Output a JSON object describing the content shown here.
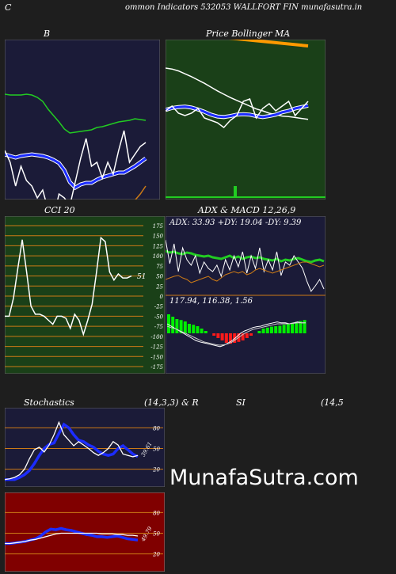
{
  "header": {
    "left_letter": "C",
    "title": "ommon  Indicators 532053 WALLFORT FIN  munafasutra.in"
  },
  "watermark": "MunafaSutra.com",
  "colors": {
    "page_bg": "#1e1e1e",
    "navy_panel": "#1b1b38",
    "green_panel": "#1a4018",
    "maroon_panel": "#800000",
    "grid_orange": "#cc7a16",
    "blue_line": "#1c2cff",
    "green_line": "#22cc22",
    "white_line": "#ffffff"
  },
  "chart_data": [
    {
      "type": "line",
      "title": "B",
      "series": [
        {
          "name": "",
          "color": "#22cc22",
          "values": [
            69,
            70,
            70,
            70,
            69,
            70,
            73,
            78,
            88,
            96,
            104,
            113,
            118,
            117,
            116,
            115,
            114,
            111,
            110,
            108,
            106,
            104,
            103,
            102,
            100,
            101,
            102
          ]
        },
        {
          "name": "",
          "color": "#1c2cff",
          "values": [
            145,
            147,
            149,
            147,
            146,
            145,
            146,
            147,
            149,
            152,
            156,
            165,
            180,
            187,
            183,
            181,
            181,
            177,
            174,
            172,
            170,
            168,
            168,
            164,
            160,
            155,
            150
          ]
        },
        {
          "name": "",
          "color": "#ffffff",
          "values": [
            140,
            155,
            185,
            160,
            178,
            185,
            200,
            190,
            215,
            225,
            195,
            200,
            210,
            180,
            150,
            125,
            160,
            155,
            175,
            155,
            170,
            140,
            115,
            155,
            145,
            135,
            130
          ]
        },
        {
          "name": "",
          "color": "#cc7a16",
          "values": [
            240,
            235,
            228,
            220,
            218,
            215,
            217,
            222,
            235,
            250,
            255,
            245,
            240,
            232,
            231,
            233,
            236,
            237,
            234,
            234,
            233,
            230,
            225,
            215,
            203,
            195,
            185
          ]
        }
      ]
    },
    {
      "type": "line",
      "title": "Price   Bollinger   MA",
      "series": [
        {
          "name": "",
          "color": "#ff8800",
          "values": [
            42,
            43,
            44,
            45,
            46,
            47,
            48,
            49,
            50,
            51,
            52,
            53,
            54,
            55,
            56,
            57,
            57,
            58,
            58,
            58,
            58,
            58,
            58
          ]
        },
        {
          "name": "",
          "color": "#ffffff",
          "values": [
            60,
            62,
            66,
            72,
            78,
            85,
            92,
            100,
            108,
            115,
            122,
            128,
            134,
            140,
            146,
            150,
            155,
            158,
            161,
            162,
            164,
            166,
            168
          ]
        },
        {
          "name": "",
          "color": "#1c2cff",
          "values": [
            148,
            144,
            142,
            141,
            143,
            147,
            152,
            158,
            162,
            163,
            161,
            158,
            157,
            158,
            161,
            163,
            161,
            158,
            153,
            150,
            145,
            142,
            139
          ]
        },
        {
          "name": "",
          "color": "#ffffff",
          "values": [
            150,
            140,
            155,
            160,
            155,
            145,
            165,
            170,
            175,
            185,
            170,
            160,
            130,
            125,
            165,
            145,
            135,
            150,
            140,
            130,
            160,
            145,
            130
          ]
        }
      ],
      "volume_bar_index": 14
    },
    {
      "type": "line",
      "title": "CCI 20",
      "ylim": [
        -175,
        175
      ],
      "yticks": [
        175,
        150,
        125,
        100,
        75,
        50,
        25,
        0,
        -25,
        -50,
        -75,
        -100,
        -125,
        -150,
        -175
      ],
      "last_value_label": "51",
      "series": [
        {
          "name": "",
          "color": "#ffffff",
          "values": [
            -50,
            -50,
            -5,
            70,
            140,
            60,
            -25,
            -45,
            -45,
            -50,
            -60,
            -70,
            -50,
            -50,
            -55,
            -80,
            -45,
            -60,
            -95,
            -60,
            -20,
            60,
            145,
            135,
            60,
            40,
            55,
            45,
            45,
            50
          ]
        }
      ]
    },
    {
      "type": "line",
      "title": "ADX  & MACD 12,26,9",
      "subtitle": "ADX: 33.93  +DY: 19.04  -DY: 9.39",
      "series": [
        {
          "name": "",
          "color": "#22cc22",
          "values": [
            44,
            46,
            45,
            47,
            48,
            46,
            47,
            49,
            50,
            51,
            50,
            52,
            53,
            54,
            52,
            50,
            53,
            51,
            54,
            52,
            51,
            53,
            52,
            54,
            55,
            56,
            54,
            57,
            55,
            56,
            54,
            53,
            55,
            57,
            58,
            56,
            55,
            57
          ]
        },
        {
          "name": "",
          "color": "#ffffff",
          "values": [
            30,
            60,
            35,
            70,
            40,
            55,
            62,
            50,
            72,
            58,
            66,
            70,
            62,
            76,
            55,
            68,
            50,
            64,
            45,
            72,
            50,
            66,
            40,
            70,
            55,
            68,
            45,
            75,
            58,
            62,
            50,
            58,
            66,
            82,
            95,
            88,
            80,
            92
          ]
        },
        {
          "name": "",
          "color": "#cc7a16",
          "values": [
            80,
            78,
            76,
            75,
            78,
            80,
            84,
            82,
            80,
            78,
            76,
            80,
            82,
            78,
            74,
            72,
            70,
            72,
            70,
            74,
            72,
            68,
            66,
            68,
            70,
            72,
            70,
            68,
            66,
            64,
            62,
            60,
            58,
            58,
            60,
            62,
            64,
            62
          ]
        }
      ]
    },
    {
      "type": "bar",
      "title": "",
      "subtitle": "117.94,  116.38,  1.56",
      "values": [
        40,
        35,
        30,
        28,
        25,
        20,
        18,
        15,
        10,
        5,
        0,
        -5,
        -10,
        -15,
        -20,
        -22,
        -20,
        -18,
        -15,
        -10,
        -5,
        0,
        5,
        10,
        12,
        14,
        15,
        16,
        18,
        20,
        22,
        24,
        26,
        28
      ],
      "series": [
        {
          "name": "",
          "color": "#ffffff",
          "values": [
            20,
            15,
            10,
            5,
            0,
            -5,
            -10,
            -15,
            -18,
            -20,
            -22,
            -24,
            -26,
            -28,
            -25,
            -20,
            -15,
            -8,
            0,
            5,
            8,
            12,
            14,
            15,
            18,
            20,
            22,
            24,
            22,
            22,
            20,
            22,
            24,
            22,
            22
          ]
        },
        {
          "name": "",
          "color": "#cccccc",
          "values": [
            15,
            12,
            10,
            6,
            2,
            -2,
            -6,
            -10,
            -14,
            -18,
            -20,
            -22,
            -24,
            -25,
            -24,
            -22,
            -18,
            -12,
            -6,
            0,
            4,
            8,
            10,
            12,
            14,
            16,
            18,
            20,
            20,
            20,
            20,
            21,
            22,
            22,
            22
          ]
        }
      ]
    },
    {
      "type": "line",
      "title": "Stochastics",
      "subtitle_parts": [
        "(14,3,3) & R",
        "SI",
        "(14,5"
      ],
      "ylim": [
        0,
        100
      ],
      "yticks": [
        80,
        50,
        20
      ],
      "last_value_label": "39.61",
      "series": [
        {
          "name": "",
          "color": "#1c2cff",
          "values": [
            5,
            5,
            5,
            8,
            12,
            18,
            28,
            40,
            50,
            56,
            58,
            72,
            85,
            80,
            70,
            62,
            60,
            55,
            52,
            46,
            42,
            40,
            42,
            50,
            54,
            48,
            42,
            38
          ]
        },
        {
          "name": "",
          "color": "#ffffff",
          "values": [
            5,
            6,
            8,
            12,
            20,
            35,
            48,
            52,
            45,
            55,
            70,
            88,
            70,
            62,
            54,
            60,
            55,
            50,
            44,
            40,
            44,
            50,
            60,
            55,
            42,
            40,
            38,
            40
          ]
        }
      ]
    },
    {
      "type": "line",
      "title": "",
      "ylim": [
        0,
        100
      ],
      "yticks": [
        80,
        50,
        20
      ],
      "last_value_label": "49.79",
      "series": [
        {
          "name": "",
          "color": "#1c2cff",
          "values": [
            35,
            35,
            36,
            37,
            38,
            40,
            42,
            46,
            52,
            56,
            55,
            57,
            55,
            54,
            52,
            50,
            48,
            47,
            45,
            45,
            44,
            45,
            46,
            44,
            42,
            41,
            40
          ]
        },
        {
          "name": "",
          "color": "#ffffff",
          "values": [
            35,
            35,
            36,
            37,
            38,
            40,
            41,
            43,
            45,
            47,
            49,
            50,
            50,
            50,
            50,
            50,
            50,
            50,
            50,
            49,
            49,
            49,
            48,
            48,
            47,
            47,
            46
          ]
        }
      ]
    }
  ]
}
